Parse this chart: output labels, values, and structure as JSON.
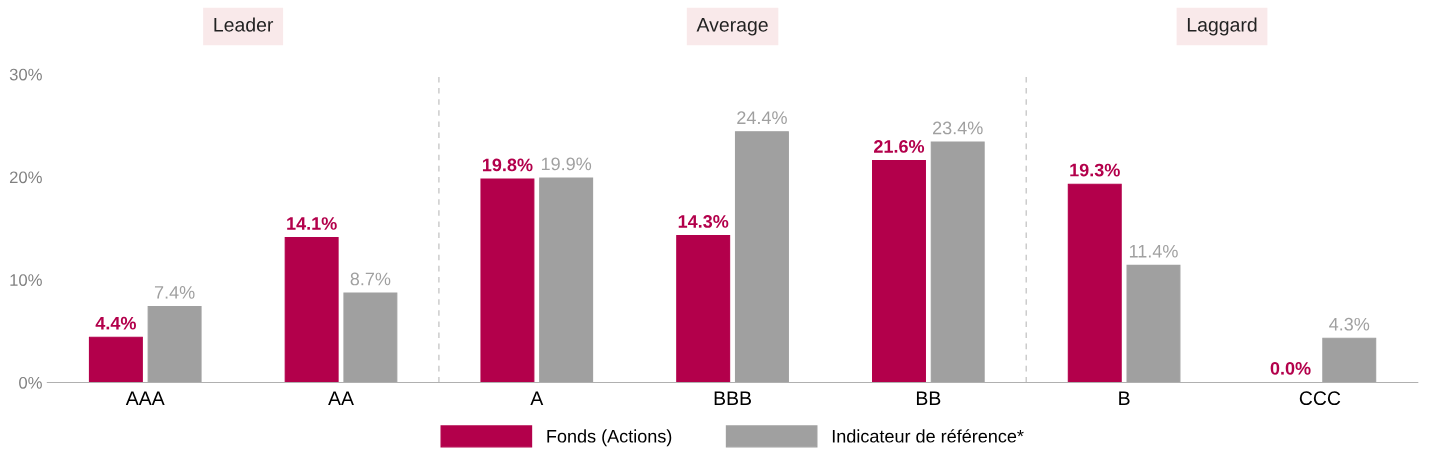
{
  "chart_data": {
    "type": "bar",
    "categories": [
      "AAA",
      "AA",
      "A",
      "BBB",
      "BB",
      "B",
      "CCC"
    ],
    "series": [
      {
        "name": "Fonds (Actions)",
        "color": "#b3004b",
        "values": [
          4.4,
          14.1,
          19.8,
          14.3,
          21.6,
          19.3,
          0.0
        ],
        "value_labels": [
          "4.4%",
          "14.1%",
          "19.8%",
          "14.3%",
          "21.6%",
          "19.3%",
          "0.0%"
        ]
      },
      {
        "name": "Indicateur de référence*",
        "color": "#a0a0a0",
        "values": [
          7.4,
          8.7,
          19.9,
          24.4,
          23.4,
          11.4,
          4.3
        ],
        "value_labels": [
          "7.4%",
          "8.7%",
          "19.9%",
          "24.4%",
          "23.4%",
          "11.4%",
          "4.3%"
        ]
      }
    ],
    "ylim": [
      0,
      30
    ],
    "yticks": [
      {
        "value": 0,
        "label": "0%"
      },
      {
        "value": 10,
        "label": "10%"
      },
      {
        "value": 20,
        "label": "20%"
      },
      {
        "value": 30,
        "label": "30%"
      }
    ],
    "annotations": [
      "Leader",
      "Average",
      "Laggard"
    ],
    "grid": false,
    "legend": "bottom"
  }
}
